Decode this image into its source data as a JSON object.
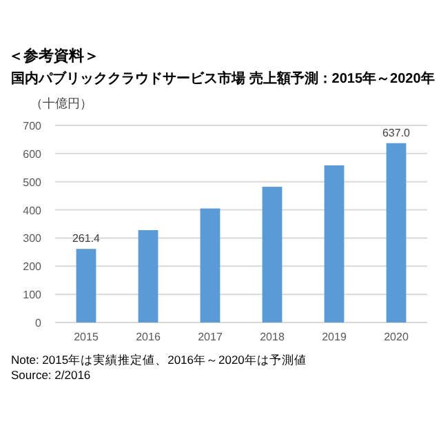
{
  "chart_data": {
    "type": "bar",
    "title": "国内パブリッククラウドサービス市場 売上額予測：2015年～2020年",
    "subtitle": "＜参考資料＞",
    "ylabel": "（十億円）",
    "categories": [
      "2015",
      "2016",
      "2017",
      "2018",
      "2019",
      "2020"
    ],
    "values": [
      261.4,
      328,
      405,
      482,
      558,
      637.0
    ],
    "value_labels": [
      "261.4",
      null,
      null,
      null,
      null,
      "637.0"
    ],
    "color": "#5b9bd5",
    "ylim": [
      0,
      700
    ],
    "yticks": [
      0,
      100,
      200,
      300,
      400,
      500,
      600,
      700
    ],
    "grid": "y",
    "annotations": [
      "Note: 2015年は実績推定値、2016年～2020年は予測値",
      "Source: 2/2016"
    ]
  }
}
